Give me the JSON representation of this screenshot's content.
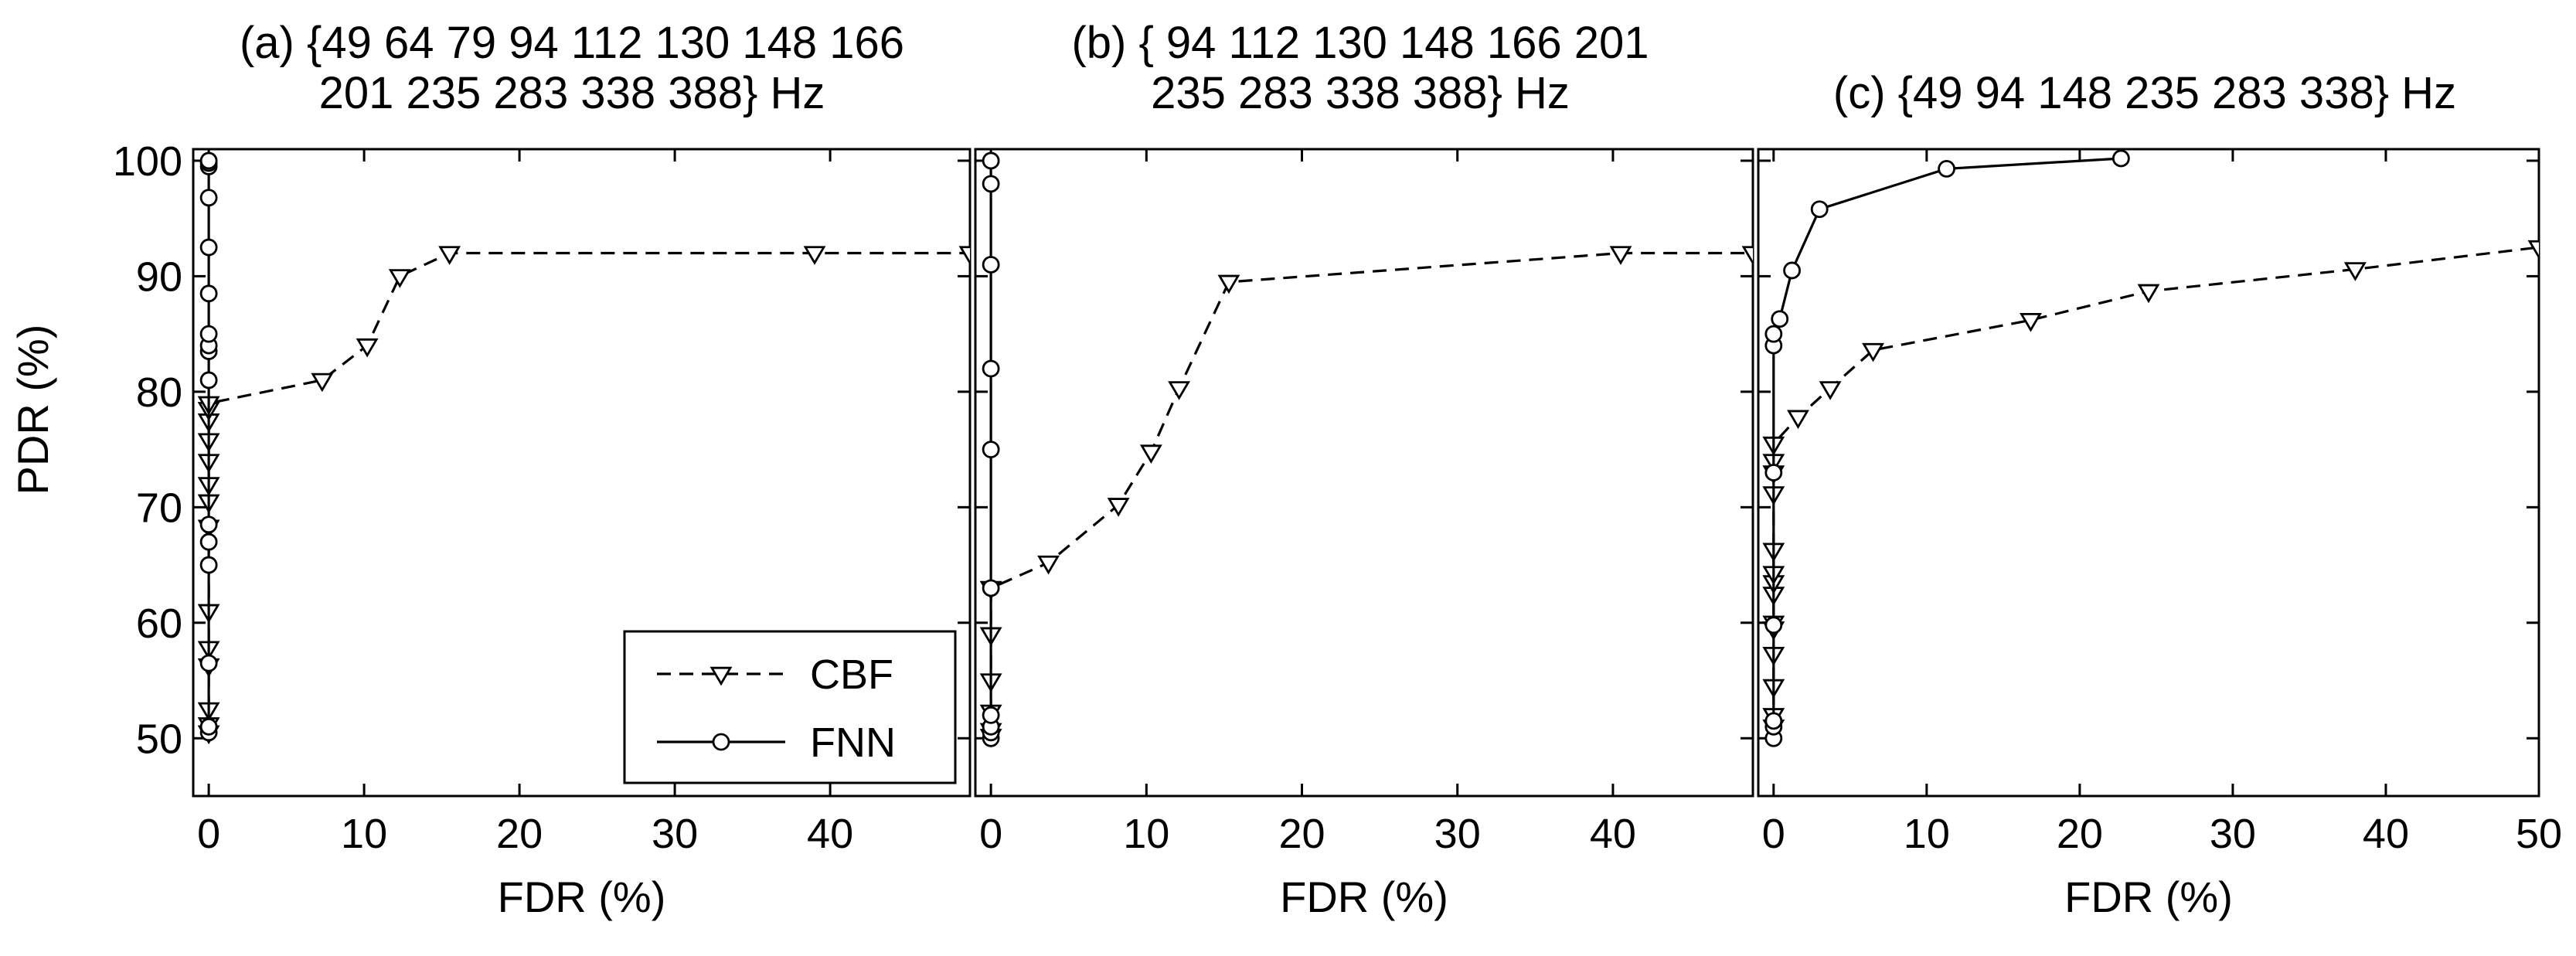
{
  "figure": {
    "ylabel": "PDR (%)",
    "legend": {
      "placement": "lower-right of panel (a)",
      "entries": [
        {
          "name": "CBF",
          "style": "dashed",
          "marker": "triangle-down"
        },
        {
          "name": "FNN",
          "style": "solid",
          "marker": "circle"
        }
      ]
    }
  },
  "chart_data": [
    {
      "type": "line",
      "title_lines": [
        "(a) {49 64 79 94 112 130 148 166",
        "201 235 283 338 388} Hz"
      ],
      "xlabel": "FDR (%)",
      "ylabel": "PDR (%)",
      "xlim": [
        -1,
        49
      ],
      "ylim": [
        45,
        101
      ],
      "xticks": [
        0,
        10,
        20,
        30,
        40
      ],
      "yticks": [
        50,
        60,
        70,
        80,
        90,
        100
      ],
      "grid": false,
      "series": [
        {
          "name": "CBF",
          "style": "dashed",
          "marker": "triangle-down",
          "x": [
            0,
            0,
            0,
            0,
            0,
            0,
            0,
            0,
            0,
            0,
            0,
            0,
            0,
            0,
            7.3,
            10.2,
            12.3,
            15.5,
            39,
            49
          ],
          "y": [
            50.5,
            51.2,
            52.5,
            56.3,
            57.8,
            61,
            68.3,
            70.5,
            72,
            74,
            75.8,
            77.5,
            78.5,
            79,
            81,
            84,
            90,
            92,
            92,
            92
          ]
        },
        {
          "name": "FNN",
          "style": "solid",
          "marker": "circle",
          "x": [
            0,
            0,
            0,
            0,
            0,
            0,
            0,
            0,
            0,
            0,
            0,
            0,
            0,
            0,
            0,
            0
          ],
          "y": [
            50.5,
            51,
            56.5,
            65,
            67,
            68.5,
            81,
            83.5,
            84,
            85,
            88.5,
            92.5,
            96.8,
            99.5,
            99.8,
            100
          ]
        }
      ]
    },
    {
      "type": "line",
      "title_lines": [
        "(b) { 94 112 130 148 166 201",
        "235 283 338 388} Hz"
      ],
      "xlabel": "FDR (%)",
      "ylabel": "",
      "xlim": [
        -1,
        49
      ],
      "ylim": [
        45,
        101
      ],
      "xticks": [
        0,
        10,
        20,
        30,
        40
      ],
      "yticks": [],
      "grid": false,
      "series": [
        {
          "name": "CBF",
          "style": "dashed",
          "marker": "triangle-down",
          "x": [
            0,
            0,
            0,
            0,
            0,
            0,
            3.7,
            8.2,
            10.3,
            12.1,
            15.3,
            40.5,
            49
          ],
          "y": [
            50.2,
            50.7,
            52.3,
            55,
            59,
            63,
            65.2,
            70.2,
            74.8,
            80.3,
            89.5,
            92,
            92
          ]
        },
        {
          "name": "FNN",
          "style": "solid",
          "marker": "circle",
          "x": [
            0,
            0,
            0,
            0,
            0,
            0,
            0,
            0,
            0,
            0
          ],
          "y": [
            50,
            50.5,
            51,
            52,
            63,
            75,
            82,
            91,
            98,
            100
          ]
        }
      ]
    },
    {
      "type": "line",
      "title_lines": [
        "(c) {49 94 148 235 283 338} Hz"
      ],
      "xlabel": "FDR (%)",
      "ylabel": "",
      "xlim": [
        -1,
        50
      ],
      "ylim": [
        45,
        101
      ],
      "xticks": [
        0,
        10,
        20,
        30,
        40,
        50
      ],
      "yticks": [],
      "grid": false,
      "series": [
        {
          "name": "CBF",
          "style": "dashed",
          "marker": "triangle-down",
          "x": [
            0,
            0,
            0,
            0,
            0,
            0,
            0,
            0,
            0,
            0,
            0,
            0,
            0,
            0,
            1.6,
            3.7,
            6.5,
            16.8,
            24.5,
            38,
            50
          ],
          "y": [
            51,
            52,
            54.5,
            57.3,
            59.5,
            60,
            62.5,
            63.5,
            64.3,
            66.3,
            71.2,
            73,
            74,
            75.5,
            77.8,
            80.3,
            83.6,
            86.2,
            88.7,
            90.6,
            92.5
          ]
        },
        {
          "name": "FNN",
          "style": "solid",
          "marker": "circle",
          "x": [
            0,
            0,
            0,
            0,
            0,
            0,
            0,
            0.4,
            1.2,
            3.0,
            11.3,
            22.7
          ],
          "y": [
            50,
            51,
            51.5,
            59.8,
            73,
            84,
            85,
            86.3,
            90.5,
            95.8,
            99.3,
            100.2
          ]
        }
      ]
    }
  ]
}
